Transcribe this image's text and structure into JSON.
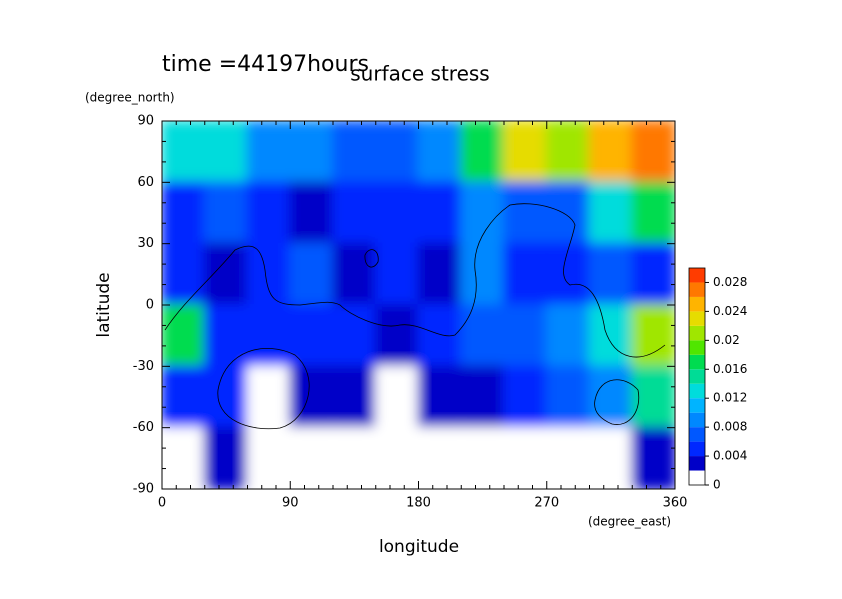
{
  "chart_data": {
    "type": "contour",
    "title": "surface stress",
    "subtitle": "time =44197hours",
    "y_units": "(degree_north)",
    "x_units": "(degree_east)",
    "x_label": "longitude",
    "y_label": "latitude",
    "xlim": [
      0,
      360
    ],
    "ylim": [
      -90,
      90
    ],
    "xticks": [
      0,
      90,
      180,
      270,
      360
    ],
    "yticks": [
      -90,
      -60,
      -30,
      0,
      30,
      60,
      90
    ],
    "x": [
      15,
      45,
      75,
      105,
      135,
      165,
      195,
      225,
      255,
      285,
      315,
      345
    ],
    "y": [
      75,
      45,
      15,
      -15,
      -45,
      -75
    ],
    "z": [
      [
        0.012,
        0.012,
        0.008,
        0.008,
        0.006,
        0.006,
        0.008,
        0.016,
        0.022,
        0.02,
        0.024,
        0.026
      ],
      [
        0.005,
        0.006,
        0.004,
        0.003,
        0.004,
        0.004,
        0.004,
        0.008,
        0.006,
        0.006,
        0.012,
        0.016
      ],
      [
        0.004,
        0.002,
        0.004,
        0.006,
        0.003,
        0.004,
        0.003,
        0.008,
        0.005,
        0.004,
        0.006,
        0.004
      ],
      [
        0.016,
        0.004,
        0.004,
        0.004,
        0.004,
        0.002,
        0.004,
        0.006,
        0.006,
        0.008,
        0.012,
        0.02
      ],
      [
        0.004,
        0.004,
        0.001,
        0.003,
        0.002,
        0.001,
        0.002,
        0.003,
        0.004,
        0.006,
        0.008,
        0.014
      ],
      [
        0.001,
        0.002,
        0.001,
        0.001,
        0.001,
        0.001,
        0.001,
        0.001,
        0.001,
        0.001,
        0.001,
        0.002
      ]
    ],
    "levels": [
      0,
      0.002,
      0.004,
      0.006,
      0.008,
      0.01,
      0.012,
      0.014,
      0.016,
      0.018,
      0.02,
      0.022,
      0.024,
      0.026,
      0.028,
      0.03
    ],
    "colors": [
      "#ffffff",
      "#0000c8",
      "#0028ff",
      "#0058ff",
      "#0088ff",
      "#00b4ff",
      "#00dcdc",
      "#00dc96",
      "#00dc50",
      "#50e600",
      "#a0e600",
      "#e6dc00",
      "#ffb400",
      "#ff7800",
      "#ff3c00"
    ],
    "cbar_lim": [
      0,
      0.03
    ],
    "cbar_ticks": [
      0,
      0.004,
      0.008,
      0.012,
      0.016,
      0.02,
      0.024,
      0.028
    ]
  }
}
